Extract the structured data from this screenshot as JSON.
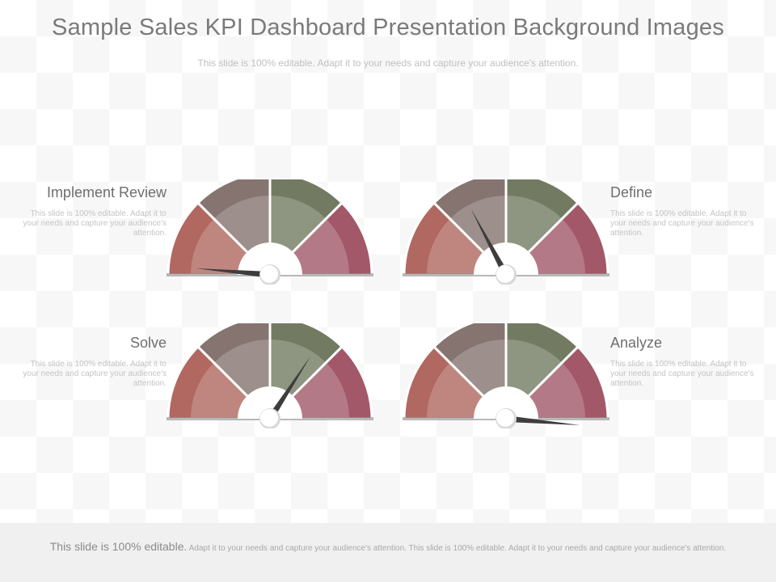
{
  "header": {
    "title": "Sample Sales KPI Dashboard Presentation Background Images",
    "subtitle": "This slide is 100% editable. Adapt it to your needs and capture your audience's attention."
  },
  "colors": {
    "segments": [
      "#b06860",
      "#857470",
      "#727b62",
      "#a25868"
    ],
    "needle": "#3d3d3d",
    "hub": "#ffffff"
  },
  "gauges": [
    {
      "heading": "Implement Review",
      "desc": "This slide is 100% editable. Adapt it to your needs and capture your audience's attention.",
      "needle_angle_deg": 175
    },
    {
      "heading": "Define",
      "desc": "This slide is 100% editable. Adapt it to your needs and capture your audience's attention.",
      "needle_angle_deg": 118
    },
    {
      "heading": "Solve",
      "desc": "This slide is 100% editable. Adapt it to your needs and capture your audience's attention.",
      "needle_angle_deg": 57
    },
    {
      "heading": "Analyze",
      "desc": "This slide is 100% editable. Adapt it to your needs and capture your audience's attention.",
      "needle_angle_deg": 355
    }
  ],
  "footer": {
    "lead": "This slide is 100% editable.",
    "text": "Adapt it to your needs and capture your audience's attention. This slide is 100% editable. Adapt it to your needs and capture your audience's attention."
  }
}
